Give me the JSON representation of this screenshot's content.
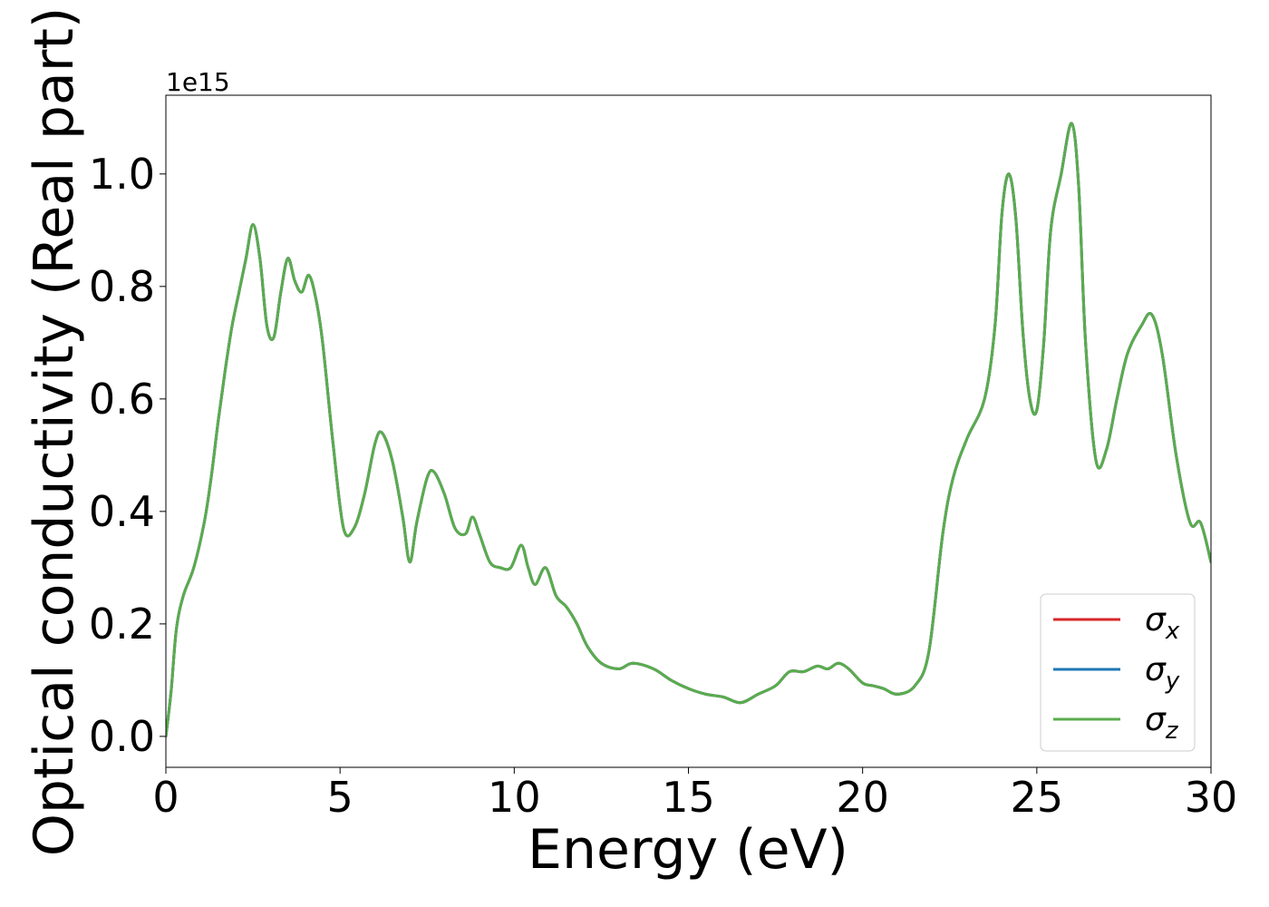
{
  "chart_data": {
    "type": "line",
    "xlabel": "Energy (eV)",
    "ylabel": "Optical conductivity (Real part)",
    "y_scale_label": "1e15",
    "xlim": [
      0,
      30
    ],
    "ylim": [
      -0.055,
      1.14
    ],
    "x_ticks": [
      0,
      5,
      10,
      15,
      20,
      25,
      30
    ],
    "x_tick_labels": [
      "0",
      "5",
      "10",
      "15",
      "20",
      "25",
      "30"
    ],
    "y_ticks": [
      0.0,
      0.2,
      0.4,
      0.6,
      0.8,
      1.0
    ],
    "y_tick_labels": [
      "0.0",
      "0.2",
      "0.4",
      "0.6",
      "0.8",
      "1.0"
    ],
    "grid": false,
    "legend_position": "lower-right",
    "series": [
      {
        "name": "σx",
        "color": "#d62728",
        "x": [
          0,
          0.15,
          0.3,
          0.5,
          0.8,
          1.1,
          1.3,
          1.5,
          1.7,
          1.9,
          2.1,
          2.3,
          2.5,
          2.7,
          2.9,
          3.1,
          3.3,
          3.5,
          3.7,
          3.9,
          4.1,
          4.3,
          4.5,
          4.8,
          5.1,
          5.4,
          5.7,
          6.0,
          6.2,
          6.5,
          6.8,
          7.0,
          7.2,
          7.5,
          7.7,
          8.0,
          8.3,
          8.6,
          8.8,
          9.0,
          9.3,
          9.6,
          9.9,
          10.2,
          10.4,
          10.6,
          10.9,
          11.2,
          11.5,
          11.8,
          12.1,
          12.5,
          13.0,
          13.4,
          14.0,
          14.5,
          15.0,
          15.5,
          16.0,
          16.5,
          17.0,
          17.5,
          17.9,
          18.3,
          18.7,
          19.0,
          19.3,
          19.6,
          20.0,
          20.3,
          20.6,
          21.0,
          21.5,
          21.9,
          22.3,
          22.6,
          23.0,
          23.5,
          23.8,
          24.0,
          24.2,
          24.4,
          24.6,
          24.8,
          25.0,
          25.2,
          25.4,
          25.7,
          26.0,
          26.2,
          26.4,
          26.7,
          27.0,
          27.3,
          27.6,
          28.0,
          28.3,
          28.6,
          29.0,
          29.4,
          29.7,
          30.0
        ],
        "values": [
          0.0,
          0.08,
          0.19,
          0.25,
          0.3,
          0.38,
          0.46,
          0.56,
          0.65,
          0.73,
          0.79,
          0.85,
          0.91,
          0.85,
          0.73,
          0.71,
          0.79,
          0.85,
          0.81,
          0.79,
          0.82,
          0.78,
          0.7,
          0.52,
          0.37,
          0.37,
          0.43,
          0.52,
          0.54,
          0.49,
          0.39,
          0.31,
          0.38,
          0.46,
          0.47,
          0.43,
          0.37,
          0.36,
          0.39,
          0.36,
          0.31,
          0.3,
          0.3,
          0.34,
          0.3,
          0.27,
          0.3,
          0.25,
          0.23,
          0.2,
          0.16,
          0.13,
          0.12,
          0.13,
          0.12,
          0.1,
          0.085,
          0.075,
          0.07,
          0.06,
          0.075,
          0.09,
          0.115,
          0.115,
          0.125,
          0.12,
          0.13,
          0.12,
          0.095,
          0.09,
          0.085,
          0.075,
          0.09,
          0.15,
          0.36,
          0.46,
          0.53,
          0.6,
          0.73,
          0.93,
          1.0,
          0.92,
          0.72,
          0.6,
          0.58,
          0.7,
          0.9,
          1.0,
          1.09,
          0.98,
          0.7,
          0.49,
          0.51,
          0.6,
          0.68,
          0.73,
          0.75,
          0.68,
          0.5,
          0.38,
          0.38,
          0.31
        ]
      },
      {
        "name": "σy",
        "color": "#1f77b4",
        "x": [
          0,
          0.15,
          0.3,
          0.5,
          0.8,
          1.1,
          1.3,
          1.5,
          1.7,
          1.9,
          2.1,
          2.3,
          2.5,
          2.7,
          2.9,
          3.1,
          3.3,
          3.5,
          3.7,
          3.9,
          4.1,
          4.3,
          4.5,
          4.8,
          5.1,
          5.4,
          5.7,
          6.0,
          6.2,
          6.5,
          6.8,
          7.0,
          7.2,
          7.5,
          7.7,
          8.0,
          8.3,
          8.6,
          8.8,
          9.0,
          9.3,
          9.6,
          9.9,
          10.2,
          10.4,
          10.6,
          10.9,
          11.2,
          11.5,
          11.8,
          12.1,
          12.5,
          13.0,
          13.4,
          14.0,
          14.5,
          15.0,
          15.5,
          16.0,
          16.5,
          17.0,
          17.5,
          17.9,
          18.3,
          18.7,
          19.0,
          19.3,
          19.6,
          20.0,
          20.3,
          20.6,
          21.0,
          21.5,
          21.9,
          22.3,
          22.6,
          23.0,
          23.5,
          23.8,
          24.0,
          24.2,
          24.4,
          24.6,
          24.8,
          25.0,
          25.2,
          25.4,
          25.7,
          26.0,
          26.2,
          26.4,
          26.7,
          27.0,
          27.3,
          27.6,
          28.0,
          28.3,
          28.6,
          29.0,
          29.4,
          29.7,
          30.0
        ],
        "values": [
          0.0,
          0.08,
          0.19,
          0.25,
          0.3,
          0.38,
          0.46,
          0.56,
          0.65,
          0.73,
          0.79,
          0.85,
          0.91,
          0.85,
          0.73,
          0.71,
          0.79,
          0.85,
          0.81,
          0.79,
          0.82,
          0.78,
          0.7,
          0.52,
          0.37,
          0.37,
          0.43,
          0.52,
          0.54,
          0.49,
          0.39,
          0.31,
          0.38,
          0.46,
          0.47,
          0.43,
          0.37,
          0.36,
          0.39,
          0.36,
          0.31,
          0.3,
          0.3,
          0.34,
          0.3,
          0.27,
          0.3,
          0.25,
          0.23,
          0.2,
          0.16,
          0.13,
          0.12,
          0.13,
          0.12,
          0.1,
          0.085,
          0.075,
          0.07,
          0.06,
          0.075,
          0.09,
          0.115,
          0.115,
          0.125,
          0.12,
          0.13,
          0.12,
          0.095,
          0.09,
          0.085,
          0.075,
          0.09,
          0.15,
          0.36,
          0.46,
          0.53,
          0.6,
          0.73,
          0.93,
          1.0,
          0.92,
          0.72,
          0.6,
          0.58,
          0.7,
          0.9,
          1.0,
          1.09,
          0.98,
          0.7,
          0.49,
          0.51,
          0.6,
          0.68,
          0.73,
          0.75,
          0.68,
          0.5,
          0.38,
          0.38,
          0.31
        ]
      },
      {
        "name": "σz",
        "color": "#5aac4e",
        "x": [
          0,
          0.15,
          0.3,
          0.5,
          0.8,
          1.1,
          1.3,
          1.5,
          1.7,
          1.9,
          2.1,
          2.3,
          2.5,
          2.7,
          2.9,
          3.1,
          3.3,
          3.5,
          3.7,
          3.9,
          4.1,
          4.3,
          4.5,
          4.8,
          5.1,
          5.4,
          5.7,
          6.0,
          6.2,
          6.5,
          6.8,
          7.0,
          7.2,
          7.5,
          7.7,
          8.0,
          8.3,
          8.6,
          8.8,
          9.0,
          9.3,
          9.6,
          9.9,
          10.2,
          10.4,
          10.6,
          10.9,
          11.2,
          11.5,
          11.8,
          12.1,
          12.5,
          13.0,
          13.4,
          14.0,
          14.5,
          15.0,
          15.5,
          16.0,
          16.5,
          17.0,
          17.5,
          17.9,
          18.3,
          18.7,
          19.0,
          19.3,
          19.6,
          20.0,
          20.3,
          20.6,
          21.0,
          21.5,
          21.9,
          22.3,
          22.6,
          23.0,
          23.5,
          23.8,
          24.0,
          24.2,
          24.4,
          24.6,
          24.8,
          25.0,
          25.2,
          25.4,
          25.7,
          26.0,
          26.2,
          26.4,
          26.7,
          27.0,
          27.3,
          27.6,
          28.0,
          28.3,
          28.6,
          29.0,
          29.4,
          29.7,
          30.0
        ],
        "values": [
          0.0,
          0.08,
          0.19,
          0.25,
          0.3,
          0.38,
          0.46,
          0.56,
          0.65,
          0.73,
          0.79,
          0.85,
          0.91,
          0.85,
          0.73,
          0.71,
          0.79,
          0.85,
          0.81,
          0.79,
          0.82,
          0.78,
          0.7,
          0.52,
          0.37,
          0.37,
          0.43,
          0.52,
          0.54,
          0.49,
          0.39,
          0.31,
          0.38,
          0.46,
          0.47,
          0.43,
          0.37,
          0.36,
          0.39,
          0.36,
          0.31,
          0.3,
          0.3,
          0.34,
          0.3,
          0.27,
          0.3,
          0.25,
          0.23,
          0.2,
          0.16,
          0.13,
          0.12,
          0.13,
          0.12,
          0.1,
          0.085,
          0.075,
          0.07,
          0.06,
          0.075,
          0.09,
          0.115,
          0.115,
          0.125,
          0.12,
          0.13,
          0.12,
          0.095,
          0.09,
          0.085,
          0.075,
          0.09,
          0.15,
          0.36,
          0.46,
          0.53,
          0.6,
          0.73,
          0.93,
          1.0,
          0.92,
          0.72,
          0.6,
          0.58,
          0.7,
          0.9,
          1.0,
          1.09,
          0.98,
          0.7,
          0.49,
          0.51,
          0.6,
          0.68,
          0.73,
          0.75,
          0.68,
          0.5,
          0.38,
          0.38,
          0.31
        ]
      }
    ],
    "legend": {
      "entries": [
        {
          "symbol": "σ",
          "sub": "x"
        },
        {
          "symbol": "σ",
          "sub": "y"
        },
        {
          "symbol": "σ",
          "sub": "z"
        }
      ]
    }
  }
}
